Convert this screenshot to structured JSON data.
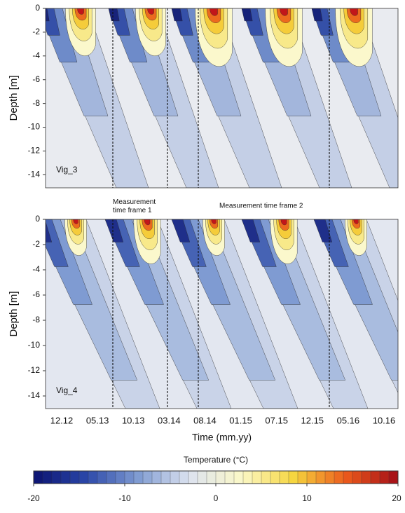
{
  "chart_data": [
    {
      "type": "contour",
      "label": "Vig_3",
      "ylabel": "Depth [m]",
      "ylim": [
        -15.1,
        0
      ],
      "yticks": [
        0,
        -2,
        -4,
        -6,
        -8,
        -10,
        -12,
        -14
      ],
      "annotations": [
        "Measurement time frame 1",
        "Measurement time frame 2"
      ]
    },
    {
      "type": "contour",
      "label": "Vig_4",
      "ylabel": "Depth [m]",
      "ylim": [
        -15,
        0
      ],
      "yticks": [
        0,
        -2,
        -4,
        -6,
        -8,
        -10,
        -12,
        -14
      ],
      "categories": [
        "12.12",
        "05.13",
        "10.13",
        "03.14",
        "08.14",
        "01.15",
        "07.15",
        "12.15",
        "05.16",
        "10.16"
      ],
      "xlabel": "Time (mm.yy)"
    },
    {
      "type": "colorbar",
      "title": "Temperature (°C)",
      "xlim": [
        -20,
        20
      ],
      "xticks": [
        -20,
        -10,
        0,
        10,
        20
      ],
      "colors": [
        "#0b1270",
        "#2a46a8",
        "#7f9bd2",
        "#dde3ef",
        "#fbf8c8",
        "#f6d63e",
        "#ec5a1c",
        "#a30d18"
      ]
    }
  ]
}
